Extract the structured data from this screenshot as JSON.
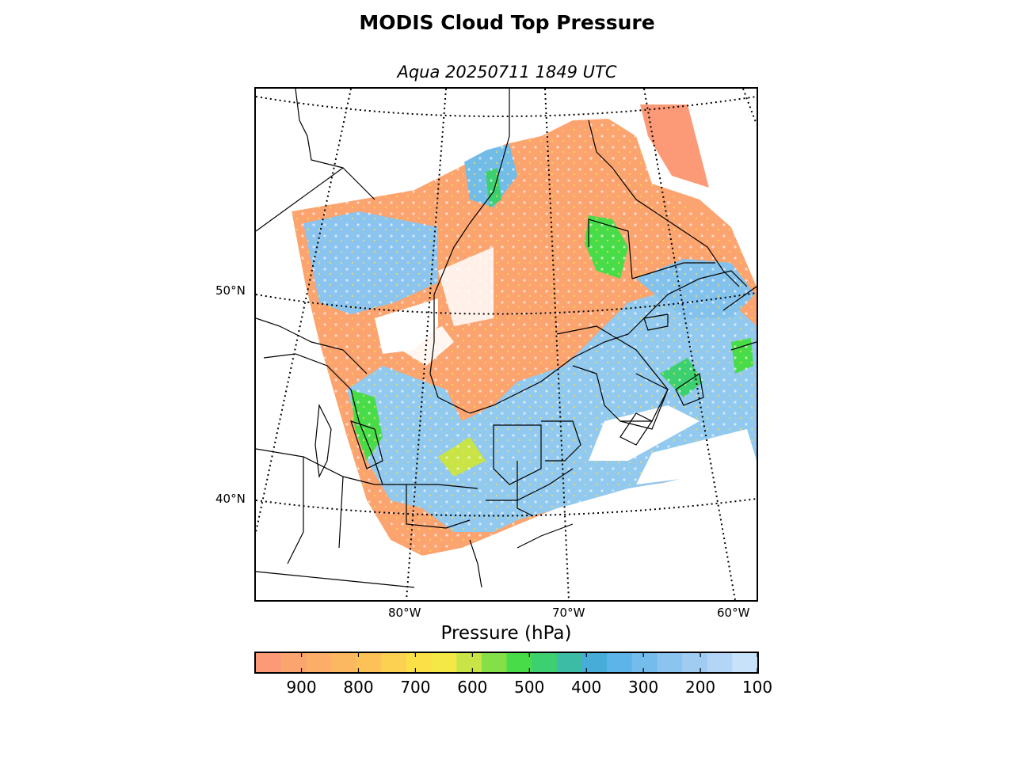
{
  "title": "MODIS Cloud Top Pressure",
  "subtitle": "Aqua 20250711 1849 UTC",
  "map": {
    "lat_labels": [
      "50°N",
      "40°N"
    ],
    "lon_labels": [
      "80°W",
      "70°W",
      "60°W"
    ]
  },
  "colorbar": {
    "label": "Pressure (hPa)",
    "ticks": [
      "900",
      "800",
      "700",
      "600",
      "500",
      "400",
      "300",
      "200",
      "100"
    ],
    "range": [
      980,
      100
    ],
    "colors": [
      "#fc9a78",
      "#fca470",
      "#fcae68",
      "#fcb860",
      "#fcc258",
      "#fcd050",
      "#fce048",
      "#f4e846",
      "#c8e446",
      "#84e046",
      "#48dc48",
      "#3cd070",
      "#3cbca4",
      "#48acd8",
      "#5cb4e8",
      "#74bcec",
      "#8cc4f0",
      "#a0ccf2",
      "#b4d6f6",
      "#c8e2fa"
    ]
  },
  "legend_colors": {
    "low_cloud": "#fca76e",
    "mid_cloud": "#fce048",
    "mid_high": "#48dc48",
    "high_cloud": "#90c8ee",
    "coastline": "#000000"
  }
}
